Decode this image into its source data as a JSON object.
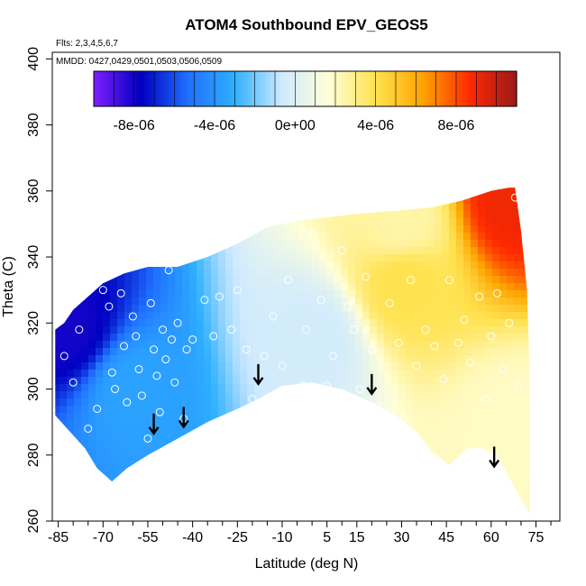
{
  "chart_data": {
    "type": "heatmap",
    "title": "ATOM4 Southbound EPV_GEOS5",
    "annotation_flights": "Flts: 2,3,4,5,6,7",
    "annotation_dates": "MMDD: 0427,0429,0501,0503,0506,0509",
    "xlabel": "Latitude (deg N)",
    "ylabel": "Theta (C)",
    "xlim": [
      -87,
      83
    ],
    "ylim": [
      260,
      402
    ],
    "x_ticks": [
      -85,
      -70,
      -55,
      -40,
      -25,
      -10,
      5,
      15,
      30,
      45,
      60,
      75
    ],
    "x_minor_ticks": [
      -80,
      -75,
      -65,
      -60,
      -50,
      -45,
      -35,
      -30,
      -20,
      -15,
      -5,
      0,
      10,
      20,
      25,
      35,
      40,
      50,
      55,
      65,
      70,
      80
    ],
    "y_ticks": [
      260,
      280,
      300,
      320,
      340,
      360,
      380,
      400
    ],
    "colorbar": {
      "range": [
        -1e-05,
        1.1e-05
      ],
      "ticks": [
        -8e-06,
        -4e-06,
        0,
        4e-06,
        8e-06
      ],
      "tick_labels": [
        "-8e-06",
        "-4e-06",
        "0e+00",
        "4e-06",
        "8e-06"
      ],
      "colors": [
        "#7f1fff",
        "#0000c0",
        "#1f6fff",
        "#2fb0ff",
        "#cfeaff",
        "#ffffd8",
        "#ffe24f",
        "#ffa400",
        "#ff2a00",
        "#9a1a1a"
      ]
    },
    "tropopause_arrows": [
      {
        "lat": -53,
        "theta": 286
      },
      {
        "lat": -43,
        "theta": 288
      },
      {
        "lat": -18,
        "theta": 301
      },
      {
        "lat": 20,
        "theta": 298
      },
      {
        "lat": 61,
        "theta": 276
      }
    ],
    "epv_field_regions": [
      {
        "description": "south polar vortex minimum",
        "lat": -82,
        "theta": 318,
        "epv": -8e-06
      },
      {
        "description": "southern mid-latitude",
        "lat": -60,
        "theta": 300,
        "epv": -3.5e-06
      },
      {
        "description": "tropics",
        "lat": 0,
        "theta": 315,
        "epv": -5e-07
      },
      {
        "description": "northern subtropical upper level",
        "lat": 30,
        "theta": 350,
        "epv": 2.5e-06
      },
      {
        "description": "isolated northern maximum",
        "lat": 31,
        "theta": 332,
        "epv": 4e-06
      },
      {
        "description": "north polar upper maximum",
        "lat": 67,
        "theta": 357,
        "epv": 9e-06
      },
      {
        "description": "north polar lower level",
        "lat": 68,
        "theta": 290,
        "epv": 2e-06
      }
    ],
    "sample_points": [
      {
        "lat": -83,
        "theta": 310
      },
      {
        "lat": -80,
        "theta": 302
      },
      {
        "lat": -78,
        "theta": 318
      },
      {
        "lat": -75,
        "theta": 288
      },
      {
        "lat": -72,
        "theta": 294
      },
      {
        "lat": -70,
        "theta": 330
      },
      {
        "lat": -68,
        "theta": 325
      },
      {
        "lat": -67,
        "theta": 305
      },
      {
        "lat": -66,
        "theta": 300
      },
      {
        "lat": -64,
        "theta": 329
      },
      {
        "lat": -63,
        "theta": 313
      },
      {
        "lat": -62,
        "theta": 296
      },
      {
        "lat": -60,
        "theta": 322
      },
      {
        "lat": -59,
        "theta": 316
      },
      {
        "lat": -58,
        "theta": 306
      },
      {
        "lat": -57,
        "theta": 298
      },
      {
        "lat": -55,
        "theta": 285
      },
      {
        "lat": -54,
        "theta": 326
      },
      {
        "lat": -53,
        "theta": 312
      },
      {
        "lat": -52,
        "theta": 304
      },
      {
        "lat": -51,
        "theta": 293
      },
      {
        "lat": -50,
        "theta": 318
      },
      {
        "lat": -49,
        "theta": 309
      },
      {
        "lat": -48,
        "theta": 336
      },
      {
        "lat": -47,
        "theta": 315
      },
      {
        "lat": -46,
        "theta": 302
      },
      {
        "lat": -45,
        "theta": 320
      },
      {
        "lat": -43,
        "theta": 291
      },
      {
        "lat": -42,
        "theta": 312
      },
      {
        "lat": -40,
        "theta": 315
      },
      {
        "lat": -36,
        "theta": 327
      },
      {
        "lat": -33,
        "theta": 316
      },
      {
        "lat": -31,
        "theta": 328
      },
      {
        "lat": -27,
        "theta": 318
      },
      {
        "lat": -25,
        "theta": 330
      },
      {
        "lat": -22,
        "theta": 312
      },
      {
        "lat": -20,
        "theta": 297
      },
      {
        "lat": -16,
        "theta": 310
      },
      {
        "lat": -13,
        "theta": 322
      },
      {
        "lat": -10,
        "theta": 307
      },
      {
        "lat": -8,
        "theta": 333
      },
      {
        "lat": -3,
        "theta": 301
      },
      {
        "lat": -2,
        "theta": 318
      },
      {
        "lat": 0,
        "theta": 347
      },
      {
        "lat": 3,
        "theta": 327
      },
      {
        "lat": 5,
        "theta": 301
      },
      {
        "lat": 7,
        "theta": 310
      },
      {
        "lat": 10,
        "theta": 342
      },
      {
        "lat": 12,
        "theta": 325
      },
      {
        "lat": 14,
        "theta": 318
      },
      {
        "lat": 16,
        "theta": 300
      },
      {
        "lat": 18,
        "theta": 334
      },
      {
        "lat": 20,
        "theta": 312
      },
      {
        "lat": 22,
        "theta": 295
      },
      {
        "lat": 26,
        "theta": 326
      },
      {
        "lat": 29,
        "theta": 314
      },
      {
        "lat": 31,
        "theta": 291
      },
      {
        "lat": 33,
        "theta": 333
      },
      {
        "lat": 35,
        "theta": 307
      },
      {
        "lat": 38,
        "theta": 318
      },
      {
        "lat": 41,
        "theta": 313
      },
      {
        "lat": 44,
        "theta": 303
      },
      {
        "lat": 46,
        "theta": 333
      },
      {
        "lat": 49,
        "theta": 314
      },
      {
        "lat": 51,
        "theta": 321
      },
      {
        "lat": 53,
        "theta": 308
      },
      {
        "lat": 56,
        "theta": 328
      },
      {
        "lat": 58,
        "theta": 297
      },
      {
        "lat": 60,
        "theta": 316
      },
      {
        "lat": 62,
        "theta": 329
      },
      {
        "lat": 64,
        "theta": 306
      },
      {
        "lat": 66,
        "theta": 320
      },
      {
        "lat": 68,
        "theta": 358
      },
      {
        "lat": 69,
        "theta": 301
      }
    ]
  }
}
